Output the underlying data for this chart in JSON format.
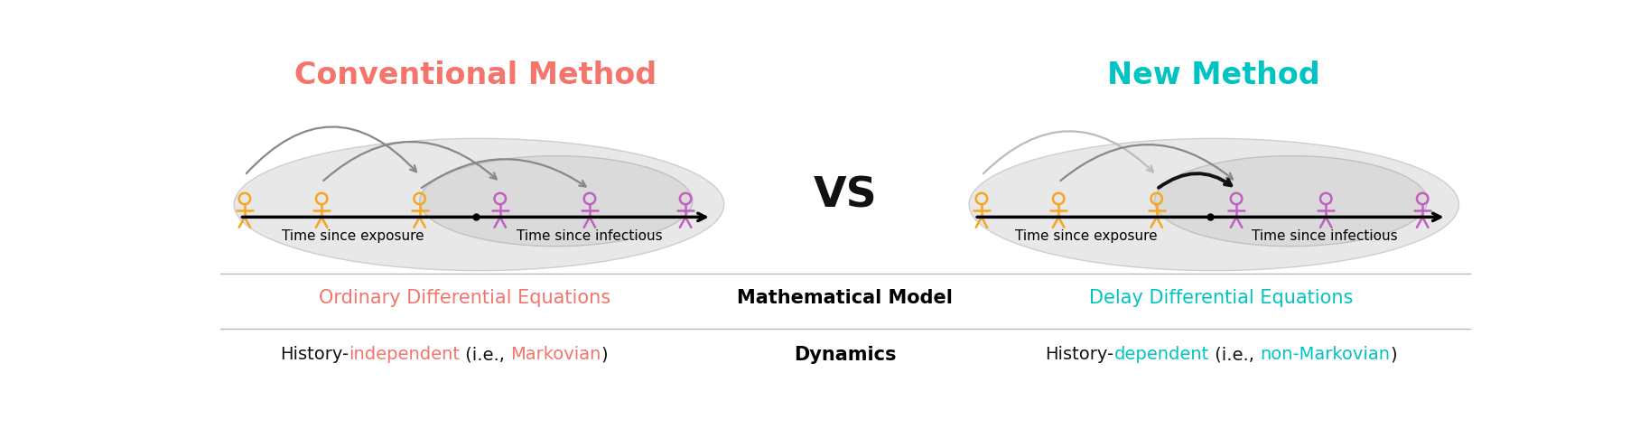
{
  "title_left": "Conventional Method",
  "title_right": "New Method",
  "title_left_color": "#F4756B",
  "title_right_color": "#00C4C4",
  "vs_text": "VS",
  "vs_color": "#111111",
  "left_xlabel1": "Time since exposure",
  "left_xlabel2": "Time since infectious",
  "right_xlabel1": "Time since exposure",
  "right_xlabel2": "Time since infectious",
  "yellow_color": "#F5A623",
  "purple_color": "#C060C0",
  "row1_label": "Mathematical Model",
  "row2_label": "Dynamics",
  "left_row1_text": "Ordinary Differential Equations",
  "left_row1_color": "#F4756B",
  "right_row1_text": "Delay Differential Equations",
  "right_row1_color": "#00C4C4",
  "background_color": "#FFFFFF",
  "left_row2_parts": [
    [
      "History-",
      "#111111"
    ],
    [
      "independent",
      "#F4756B"
    ],
    [
      " (i.e., ",
      "#111111"
    ],
    [
      "Markovian",
      "#F4756B"
    ],
    [
      ")",
      "#111111"
    ]
  ],
  "right_row2_parts": [
    [
      "History-",
      "#111111"
    ],
    [
      "dependent",
      "#00C4C4"
    ],
    [
      " (i.e., ",
      "#111111"
    ],
    [
      "non-Markovian",
      "#00C4C4"
    ],
    [
      ")",
      "#111111"
    ]
  ]
}
